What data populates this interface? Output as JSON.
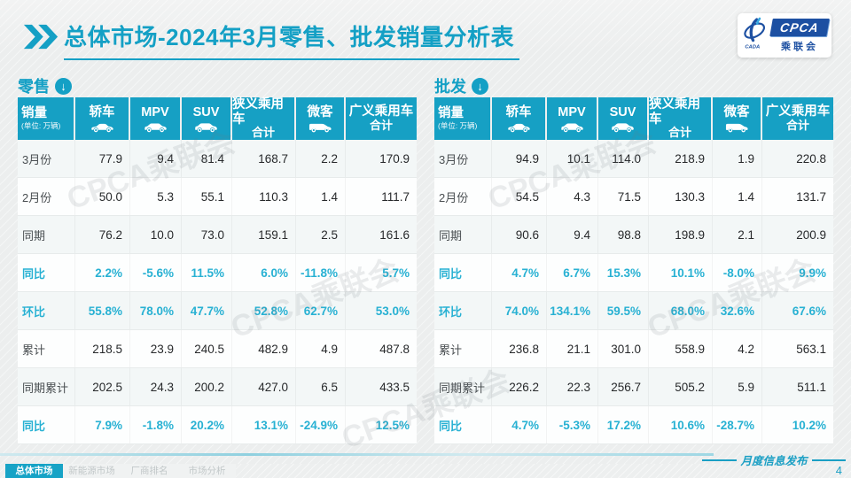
{
  "header": {
    "title_bold": "总体市场",
    "title_rest": "-2024年3月零售、批发销量分析表",
    "logo": {
      "cpca": "CPCA",
      "cn": "乘联会",
      "cada": "CADA"
    }
  },
  "columns": [
    {
      "label": "销量",
      "sub": "(单位: 万辆)",
      "icon": null
    },
    {
      "label": "轿车",
      "icon": "sedan-icon"
    },
    {
      "label": "MPV",
      "icon": "mpv-icon"
    },
    {
      "label": "SUV",
      "icon": "suv-icon"
    },
    {
      "label": "狭义乘用车",
      "label2": "合计",
      "icon": null
    },
    {
      "label": "微客",
      "icon": "van-icon"
    },
    {
      "label": "广义乘用车",
      "label2": "合计",
      "icon": null
    }
  ],
  "tables": [
    {
      "name": "零售",
      "rows": [
        {
          "label": "3月份",
          "type": "normal",
          "values": [
            "77.9",
            "9.4",
            "81.4",
            "168.7",
            "2.2",
            "170.9"
          ]
        },
        {
          "label": "2月份",
          "type": "normal",
          "values": [
            "50.0",
            "5.3",
            "55.1",
            "110.3",
            "1.4",
            "111.7"
          ]
        },
        {
          "label": "同期",
          "type": "normal",
          "values": [
            "76.2",
            "10.0",
            "73.0",
            "159.1",
            "2.5",
            "161.6"
          ]
        },
        {
          "label": "同比",
          "type": "percent",
          "values": [
            "2.2%",
            "-5.6%",
            "11.5%",
            "6.0%",
            "-11.8%",
            "5.7%"
          ]
        },
        {
          "label": "环比",
          "type": "percent",
          "values": [
            "55.8%",
            "78.0%",
            "47.7%",
            "52.8%",
            "62.7%",
            "53.0%"
          ]
        },
        {
          "label": "累计",
          "type": "normal",
          "values": [
            "218.5",
            "23.9",
            "240.5",
            "482.9",
            "4.9",
            "487.8"
          ]
        },
        {
          "label": "同期累计",
          "type": "normal",
          "values": [
            "202.5",
            "24.3",
            "200.2",
            "427.0",
            "6.5",
            "433.5"
          ]
        },
        {
          "label": "同比",
          "type": "percent",
          "values": [
            "7.9%",
            "-1.8%",
            "20.2%",
            "13.1%",
            "-24.9%",
            "12.5%"
          ]
        }
      ]
    },
    {
      "name": "批发",
      "rows": [
        {
          "label": "3月份",
          "type": "normal",
          "values": [
            "94.9",
            "10.1",
            "114.0",
            "218.9",
            "1.9",
            "220.8"
          ]
        },
        {
          "label": "2月份",
          "type": "normal",
          "values": [
            "54.5",
            "4.3",
            "71.5",
            "130.3",
            "1.4",
            "131.7"
          ]
        },
        {
          "label": "同期",
          "type": "normal",
          "values": [
            "90.6",
            "9.4",
            "98.8",
            "198.9",
            "2.1",
            "200.9"
          ]
        },
        {
          "label": "同比",
          "type": "percent",
          "values": [
            "4.7%",
            "6.7%",
            "15.3%",
            "10.1%",
            "-8.0%",
            "9.9%"
          ]
        },
        {
          "label": "环比",
          "type": "percent",
          "values": [
            "74.0%",
            "134.1%",
            "59.5%",
            "68.0%",
            "32.6%",
            "67.6%"
          ]
        },
        {
          "label": "累计",
          "type": "normal",
          "values": [
            "236.8",
            "21.1",
            "301.0",
            "558.9",
            "4.2",
            "563.1"
          ]
        },
        {
          "label": "同期累计",
          "type": "normal",
          "values": [
            "226.2",
            "22.3",
            "256.7",
            "505.2",
            "5.9",
            "511.1"
          ]
        },
        {
          "label": "同比",
          "type": "percent",
          "values": [
            "4.7%",
            "-5.3%",
            "17.2%",
            "10.6%",
            "-28.7%",
            "10.2%"
          ]
        }
      ]
    }
  ],
  "footer": {
    "tabs": [
      {
        "label": "总体市场",
        "active": true
      },
      {
        "label": "新能源市场",
        "active": false
      },
      {
        "label": "厂商排名",
        "active": false
      },
      {
        "label": "市场分析",
        "active": false
      }
    ],
    "publish": "月度信息发布",
    "page": "4"
  },
  "watermark": "CPCA乘联会",
  "colors": {
    "teal": "#16a0c4",
    "title_teal": "#14a0c5",
    "percent_text": "#28b1d3",
    "logo_blue": "#1d50a2"
  }
}
